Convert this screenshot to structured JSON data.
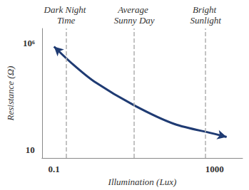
{
  "chart_data": {
    "type": "line",
    "x_label": "Illumination (Lux)",
    "y_label": "Resistance (Ω)",
    "x": [
      0.1,
      0.3,
      1,
      10,
      100,
      1000,
      2000
    ],
    "values": [
      700000,
      100000,
      16000,
      1200,
      160,
      55,
      39
    ],
    "color": "#1f3b73",
    "log": true,
    "xlim": [
      0.05,
      5000
    ],
    "ylim": [
      4,
      5000000
    ],
    "xticks": [
      0.1,
      1000
    ],
    "yticks": [
      10,
      {
        "value": 1000000,
        "label": "10⁶"
      }
    ],
    "grid": false,
    "marker": "arrow",
    "annotations": [
      {
        "x": 0.2,
        "text": "Dark Night Time"
      },
      {
        "x": 10,
        "text": "Average Sunny Day"
      },
      {
        "x": 600,
        "text": "Bright Sunlight"
      }
    ]
  }
}
